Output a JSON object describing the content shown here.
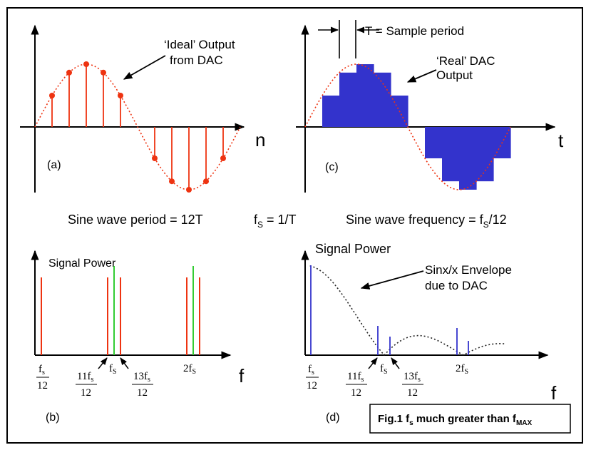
{
  "colors": {
    "frame": "#000000",
    "ideal": "#ee3311",
    "dac": "#3333cc",
    "green": "#33cc33",
    "envelope": "#222222"
  },
  "panel_a": {
    "label": "(a)",
    "axis_label": "n",
    "callout_line1": "‘Ideal’ Output",
    "callout_line2": "from DAC",
    "sine_period_samples": 12
  },
  "panel_c": {
    "label": "(c)",
    "axis_label": "t",
    "period_label": "T = Sample period",
    "callout_line1": "‘Real’ DAC",
    "callout_line2": "Output"
  },
  "middle": {
    "period_text": "Sine wave period = 12T",
    "fs_prefix": "f",
    "fs_sub": "S",
    "fs_suffix": " = 1/T",
    "freq_prefix": "Sine wave frequency = f",
    "freq_sub": "S",
    "freq_suffix": "/12"
  },
  "panel_b": {
    "label": "(b)",
    "title": "Signal Power",
    "axis_label": "f"
  },
  "panel_d": {
    "label": "(d)",
    "title": "Signal Power",
    "axis_label": "f",
    "envelope_line1": "Sinx/x Envelope",
    "envelope_line2": "due to DAC"
  },
  "freq_labels": {
    "fs12_num": "f",
    "fs12_num_sub": "s",
    "fs12_den": "12",
    "f11_num": "11f",
    "f11_num_sub": "s",
    "f11_den": "12",
    "fs_main": "f",
    "fs_sub": "S",
    "f13_num": "13f",
    "f13_num_sub": "s",
    "f13_den": "12",
    "f2fs_main": "2f",
    "f2fs_sub": "S"
  },
  "caption": {
    "prefix": "Fig.1  f",
    "sub1": "s",
    "middle": " much greater than f",
    "sub2": "MAX"
  }
}
